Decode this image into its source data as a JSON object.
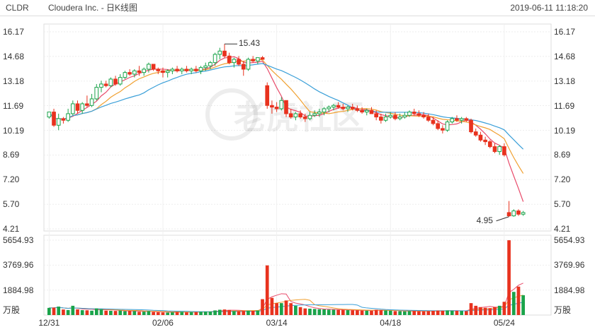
{
  "header": {
    "ticker": "CLDR",
    "title": "Cloudera Inc. - 日K线图",
    "timestamp": "2019-06-11 11:18:20"
  },
  "watermark": "老虎社区",
  "chart_data": {
    "type": "candlestick",
    "price_ticks": [
      "16.17",
      "14.68",
      "13.18",
      "11.69",
      "10.19",
      "8.69",
      "7.20",
      "5.70",
      "4.21"
    ],
    "price_range": [
      4.21,
      16.17
    ],
    "volume_ticks": [
      "5654.93",
      "3769.96",
      "1884.98"
    ],
    "volume_unit": "万股",
    "volume_range": [
      0,
      5654.93
    ],
    "x_ticks": [
      {
        "label": "12/31",
        "index": 0
      },
      {
        "label": "02/06",
        "index": 24
      },
      {
        "label": "03/14",
        "index": 48
      },
      {
        "label": "04/18",
        "index": 72
      },
      {
        "label": "05/24",
        "index": 96
      }
    ],
    "annotations": {
      "high": "15.43",
      "low": "4.95"
    },
    "colors": {
      "up": "#1aa34a",
      "down": "#e8321e",
      "ma5": "#e84a6a",
      "ma10": "#f0a030",
      "ma20": "#3a9fd8"
    },
    "candles": [
      [
        11.0,
        11.3,
        10.9,
        11.3,
        540
      ],
      [
        11.3,
        11.5,
        10.4,
        10.5,
        560
      ],
      [
        10.5,
        11.2,
        10.2,
        10.9,
        640
      ],
      [
        10.9,
        11.0,
        10.6,
        10.8,
        420
      ],
      [
        10.8,
        11.5,
        10.7,
        11.2,
        380
      ],
      [
        11.2,
        12.0,
        11.1,
        11.8,
        700
      ],
      [
        11.8,
        12.0,
        11.2,
        11.4,
        430
      ],
      [
        11.4,
        11.9,
        11.2,
        11.8,
        370
      ],
      [
        11.8,
        12.3,
        11.6,
        11.7,
        360
      ],
      [
        11.7,
        12.4,
        11.6,
        12.1,
        330
      ],
      [
        12.1,
        13.0,
        12.0,
        12.8,
        500
      ],
      [
        12.8,
        13.2,
        12.5,
        13.0,
        440
      ],
      [
        13.0,
        13.2,
        12.8,
        12.9,
        330
      ],
      [
        12.9,
        13.4,
        12.8,
        13.3,
        320
      ],
      [
        13.3,
        13.5,
        12.9,
        13.0,
        310
      ],
      [
        13.0,
        13.6,
        12.9,
        13.4,
        340
      ],
      [
        13.4,
        13.8,
        13.3,
        13.7,
        290
      ],
      [
        13.7,
        13.9,
        13.5,
        13.6,
        310
      ],
      [
        13.6,
        13.9,
        13.4,
        13.8,
        300
      ],
      [
        13.8,
        14.1,
        13.5,
        13.7,
        250
      ],
      [
        13.7,
        14.0,
        13.5,
        13.9,
        260
      ],
      [
        13.9,
        14.3,
        13.7,
        14.2,
        300
      ],
      [
        14.2,
        14.2,
        13.8,
        13.9,
        230
      ],
      [
        13.9,
        14.0,
        13.6,
        13.8,
        210
      ],
      [
        13.8,
        14.0,
        13.4,
        13.7,
        200
      ],
      [
        13.7,
        13.9,
        13.4,
        13.8,
        190
      ],
      [
        13.8,
        14.0,
        13.6,
        13.9,
        210
      ],
      [
        13.9,
        14.1,
        13.7,
        13.8,
        230
      ],
      [
        13.8,
        14.0,
        13.6,
        13.9,
        240
      ],
      [
        13.9,
        14.1,
        13.7,
        13.8,
        210
      ],
      [
        13.8,
        14.0,
        13.6,
        13.9,
        220
      ],
      [
        13.9,
        14.1,
        13.7,
        13.8,
        230
      ],
      [
        13.8,
        14.1,
        13.6,
        14.0,
        250
      ],
      [
        14.0,
        14.3,
        13.8,
        14.1,
        260
      ],
      [
        14.1,
        14.4,
        13.9,
        14.3,
        270
      ],
      [
        14.3,
        14.9,
        14.1,
        14.8,
        350
      ],
      [
        14.8,
        15.2,
        14.5,
        15.0,
        400
      ],
      [
        15.0,
        15.43,
        14.6,
        14.7,
        420
      ],
      [
        14.7,
        14.9,
        14.2,
        14.3,
        380
      ],
      [
        14.3,
        14.6,
        14.0,
        14.5,
        300
      ],
      [
        14.5,
        14.7,
        14.1,
        14.2,
        290
      ],
      [
        14.2,
        14.4,
        13.5,
        13.9,
        310
      ],
      [
        13.9,
        14.6,
        13.8,
        14.5,
        330
      ],
      [
        14.5,
        14.7,
        14.3,
        14.4,
        320
      ],
      [
        14.4,
        14.6,
        14.2,
        14.6,
        340
      ],
      [
        14.6,
        14.7,
        14.5,
        14.5,
        1200
      ],
      [
        12.9,
        13.1,
        11.5,
        11.7,
        3750
      ],
      [
        11.7,
        12.0,
        11.2,
        11.6,
        1300
      ],
      [
        11.6,
        11.9,
        11.3,
        11.5,
        900
      ],
      [
        11.5,
        12.2,
        11.4,
        12.0,
        900
      ],
      [
        12.0,
        12.0,
        11.0,
        11.2,
        1100
      ],
      [
        11.2,
        11.5,
        10.9,
        11.0,
        900
      ],
      [
        11.0,
        11.3,
        10.8,
        11.2,
        700
      ],
      [
        11.2,
        11.4,
        10.9,
        11.0,
        600
      ],
      [
        11.0,
        11.2,
        10.7,
        10.9,
        500
      ],
      [
        10.9,
        11.3,
        10.8,
        11.1,
        480
      ],
      [
        11.1,
        11.4,
        11.0,
        11.2,
        460
      ],
      [
        11.2,
        11.5,
        11.0,
        11.3,
        440
      ],
      [
        11.3,
        11.6,
        11.1,
        11.5,
        430
      ],
      [
        11.5,
        11.7,
        11.3,
        11.6,
        410
      ],
      [
        11.6,
        11.8,
        11.4,
        11.7,
        400
      ],
      [
        11.7,
        11.9,
        11.5,
        11.6,
        390
      ],
      [
        11.6,
        11.8,
        11.4,
        11.5,
        380
      ],
      [
        11.5,
        11.7,
        11.3,
        11.6,
        370
      ],
      [
        11.6,
        11.8,
        11.4,
        11.5,
        360
      ],
      [
        11.5,
        11.7,
        11.3,
        11.4,
        350
      ],
      [
        11.4,
        11.6,
        11.2,
        11.3,
        340
      ],
      [
        11.3,
        11.5,
        11.1,
        11.4,
        330
      ],
      [
        11.4,
        11.6,
        11.2,
        11.2,
        320
      ],
      [
        11.2,
        11.4,
        10.8,
        11.0,
        400
      ],
      [
        11.0,
        11.2,
        10.6,
        10.8,
        380
      ],
      [
        10.8,
        11.2,
        10.7,
        11.0,
        350
      ],
      [
        11.0,
        11.3,
        10.9,
        11.1,
        330
      ],
      [
        11.1,
        11.3,
        10.8,
        10.9,
        300
      ],
      [
        10.9,
        11.2,
        10.8,
        11.0,
        290
      ],
      [
        11.0,
        11.3,
        10.9,
        11.1,
        280
      ],
      [
        11.1,
        11.4,
        11.0,
        11.3,
        300
      ],
      [
        11.3,
        11.5,
        11.1,
        11.2,
        310
      ],
      [
        11.2,
        11.4,
        11.0,
        11.1,
        290
      ],
      [
        11.1,
        11.3,
        10.9,
        11.0,
        280
      ],
      [
        11.0,
        11.2,
        10.7,
        10.8,
        300
      ],
      [
        10.8,
        11.0,
        10.5,
        10.6,
        320
      ],
      [
        10.6,
        10.8,
        10.2,
        10.3,
        340
      ],
      [
        10.3,
        10.5,
        10.0,
        10.2,
        330
      ],
      [
        10.2,
        10.8,
        10.1,
        10.7,
        350
      ],
      [
        10.7,
        11.0,
        10.6,
        10.9,
        330
      ],
      [
        10.9,
        11.1,
        10.7,
        10.8,
        320
      ],
      [
        10.8,
        11.0,
        10.6,
        10.9,
        310
      ],
      [
        10.9,
        11.0,
        10.7,
        10.8,
        300
      ],
      [
        10.8,
        10.9,
        10.0,
        10.1,
        900
      ],
      [
        10.1,
        10.3,
        9.8,
        9.9,
        700
      ],
      [
        9.9,
        10.1,
        9.5,
        9.6,
        600
      ],
      [
        9.6,
        9.8,
        9.3,
        9.5,
        550
      ],
      [
        9.5,
        9.6,
        9.1,
        9.2,
        520
      ],
      [
        9.2,
        9.4,
        8.8,
        8.9,
        600
      ],
      [
        8.9,
        9.3,
        8.7,
        9.2,
        700
      ],
      [
        9.2,
        9.4,
        8.6,
        8.7,
        1000
      ],
      [
        5.2,
        5.9,
        4.95,
        5.0,
        5650
      ],
      [
        5.0,
        5.4,
        4.95,
        5.3,
        1750
      ],
      [
        5.3,
        5.4,
        5.0,
        5.1,
        2150
      ],
      [
        5.1,
        5.3,
        5.0,
        5.2,
        1500
      ]
    ]
  }
}
